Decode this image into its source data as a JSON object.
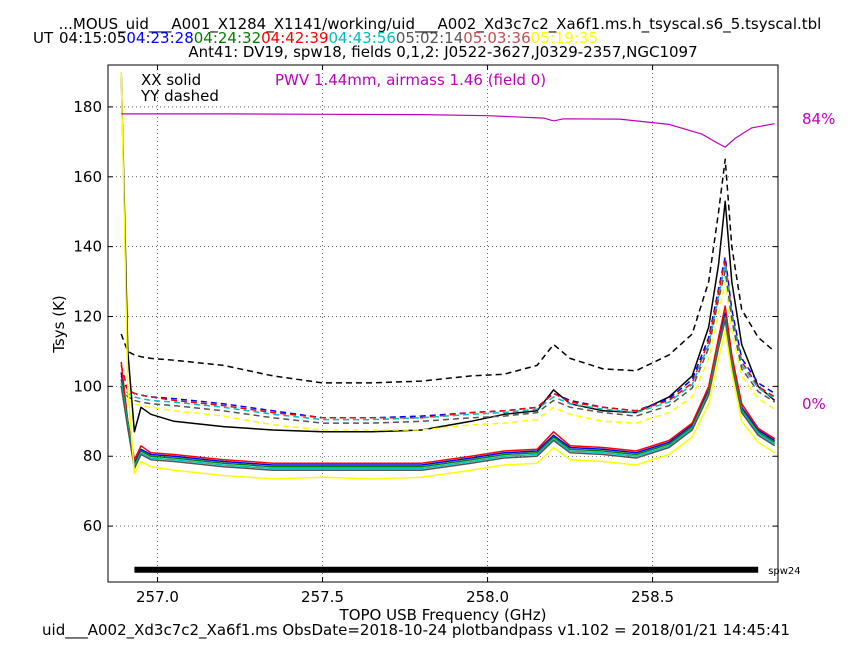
{
  "title_line1": "...MOUS_uid___A001_X1284_X1141/working/uid___A002_Xd3c7c2_Xa6f1.ms.h_tsyscal.s6_5.tsyscal.tbl",
  "ut_label": "UT",
  "ut_times": [
    {
      "text": "04:15:05",
      "color": "#000000"
    },
    {
      "text": "04:23:28",
      "color": "#0000ff"
    },
    {
      "text": "04:24:32",
      "color": "#008000"
    },
    {
      "text": "04:42:39",
      "color": "#ff0000"
    },
    {
      "text": "04:43:56",
      "color": "#00bfbf"
    },
    {
      "text": "05:02:14",
      "color": "#555555"
    },
    {
      "text": "05:03:36",
      "color": "#c44e52"
    },
    {
      "text": "05:19:35",
      "color": "#ffff00"
    }
  ],
  "title_line3": "Ant41: DV19,  spw18,  fields 0,1,2: J0522-3627,J0329-2357,NGC1097",
  "legend_solid": "XX solid",
  "legend_dashed": "YY dashed",
  "pwv_label": "PWV 1.44mm, airmass 1.46 (field 0)",
  "right_top_pct": "84%",
  "right_bottom_pct": "0%",
  "spw_label": "spw24",
  "footer": "uid___A002_Xd3c7c2_Xa6f1.ms  ObsDate=2018-10-24   plotbandpass v1.102 = 2018/01/21 14:45:41",
  "chart_data": {
    "type": "line",
    "xlabel": "TOPO USB Frequency (GHz)",
    "ylabel": "Tsys (K)",
    "xlim": [
      256.85,
      258.88
    ],
    "ylim": [
      44,
      192
    ],
    "xticks": [
      257.0,
      257.5,
      258.0,
      258.5
    ],
    "yticks": [
      60,
      80,
      100,
      120,
      140,
      160,
      180
    ],
    "grid": true,
    "transmission_axis": {
      "label_top": "84%",
      "label_bottom": "0%"
    },
    "transmission_curve": {
      "color": "#bf00bf",
      "x": [
        256.89,
        257.2,
        257.5,
        257.8,
        258.0,
        258.17,
        258.2,
        258.23,
        258.4,
        258.55,
        258.65,
        258.69,
        258.72,
        258.75,
        258.8,
        258.87
      ],
      "y": [
        178,
        178,
        177.9,
        177.8,
        177.5,
        176.8,
        176,
        176.6,
        176.5,
        175,
        172.2,
        170,
        168.5,
        171,
        174,
        175.2
      ]
    },
    "spw_bar": {
      "x_start": 256.93,
      "x_end": 258.82,
      "y": 47.5,
      "label": "spw24"
    },
    "x": [
      256.89,
      256.91,
      256.93,
      256.95,
      256.98,
      257.05,
      257.2,
      257.35,
      257.5,
      257.65,
      257.8,
      257.95,
      258.05,
      258.15,
      258.2,
      258.25,
      258.35,
      258.45,
      258.55,
      258.62,
      258.67,
      258.7,
      258.72,
      258.74,
      258.77,
      258.82,
      258.87
    ],
    "series": [
      {
        "color": "#000000",
        "style": "solid",
        "y": [
          190,
          110,
          87,
          94,
          92,
          90,
          88.5,
          87.5,
          87,
          87,
          87.5,
          90,
          92,
          93,
          99,
          95,
          93,
          92.5,
          97,
          103,
          117,
          135,
          153,
          130,
          112,
          100,
          96
        ]
      },
      {
        "color": "#000000",
        "style": "dashed",
        "y": [
          115,
          110,
          109,
          108.5,
          108,
          107.5,
          106,
          103,
          101,
          101,
          101.5,
          103,
          103.5,
          106,
          112,
          108,
          105,
          104.5,
          109,
          115,
          130,
          150,
          165,
          140,
          122,
          114,
          110
        ]
      },
      {
        "color": "#0000ff",
        "style": "dashed",
        "y": [
          103,
          99,
          98,
          97.5,
          97,
          96.5,
          95,
          93,
          91,
          91,
          91.5,
          92.5,
          93,
          94,
          98,
          96,
          94,
          93,
          96.5,
          102,
          114,
          128,
          137,
          122,
          108,
          101,
          98
        ]
      },
      {
        "color": "#ff0000",
        "style": "dashed",
        "y": [
          106,
          99,
          98,
          97.5,
          97,
          96,
          94.5,
          92.5,
          91,
          91,
          91,
          92.5,
          93,
          94,
          98,
          95.5,
          94,
          93,
          96,
          101,
          113,
          127,
          136,
          121,
          107,
          100,
          97
        ]
      },
      {
        "color": "#00bfbf",
        "style": "dashed",
        "y": [
          101,
          98,
          97,
          96.5,
          96,
          95.5,
          94,
          92,
          90.5,
          90.5,
          91,
          92,
          92.5,
          93.5,
          97,
          95,
          93.5,
          92.5,
          95.5,
          100.5,
          112,
          126,
          135,
          120,
          106,
          99.5,
          96.5
        ]
      },
      {
        "color": "#555555",
        "style": "dashed",
        "y": [
          100,
          97,
          96,
          95.5,
          95,
          94.5,
          93,
          91,
          89.5,
          89.5,
          90,
          91,
          91.5,
          92.5,
          96,
          94,
          92.5,
          91.5,
          94.5,
          99.5,
          111,
          125,
          133,
          119,
          105,
          98.5,
          95.5
        ]
      },
      {
        "color": "#ffff00",
        "style": "dashed",
        "y": [
          99,
          96,
          95,
          94.5,
          94,
          93,
          91.5,
          89,
          87.5,
          87.5,
          87.5,
          89,
          89.5,
          90.5,
          94,
          92,
          90,
          89.5,
          92.5,
          97,
          108,
          121,
          130,
          116,
          103,
          96.5,
          93.5
        ]
      },
      {
        "color": "#0000ff",
        "style": "solid",
        "y": [
          104,
          90,
          78,
          82,
          80.5,
          80,
          78.5,
          77.5,
          77.5,
          77.5,
          77.5,
          79.5,
          81,
          81.5,
          86,
          82.5,
          82,
          81,
          84,
          89,
          99,
          113,
          121,
          108,
          94,
          87.5,
          84.5
        ]
      },
      {
        "color": "#ff0000",
        "style": "solid",
        "y": [
          107,
          90,
          79,
          83,
          81,
          80.5,
          79,
          78,
          78,
          78,
          78,
          80,
          81.5,
          82,
          87,
          83,
          82.5,
          81.5,
          84.5,
          89.5,
          100,
          114,
          123,
          109,
          95,
          88,
          85
        ]
      },
      {
        "color": "#008000",
        "style": "solid",
        "y": [
          102,
          90,
          77.5,
          81.5,
          80,
          79.5,
          78,
          77,
          77,
          77,
          77,
          79,
          80.5,
          81,
          85.5,
          82,
          81.5,
          80.5,
          83.5,
          88.5,
          98.5,
          112,
          120,
          107,
          93.5,
          87,
          84
        ]
      },
      {
        "color": "#00bfbf",
        "style": "solid",
        "y": [
          101,
          89,
          77,
          81,
          79.5,
          79,
          77.5,
          76.5,
          76.5,
          76.5,
          76.5,
          78.5,
          80,
          80.5,
          85,
          81.5,
          81,
          80,
          83,
          88,
          98,
          111.5,
          119.5,
          106.5,
          93,
          86.5,
          83.5
        ]
      },
      {
        "color": "#555555",
        "style": "solid",
        "y": [
          100,
          88,
          76.5,
          80.5,
          79,
          78.5,
          77,
          76,
          76,
          76,
          76,
          78,
          79.5,
          80,
          84.5,
          81,
          80.5,
          79.5,
          82.5,
          87.5,
          97.5,
          111,
          119,
          106,
          92.5,
          86,
          83
        ]
      },
      {
        "color": "#ffff00",
        "style": "solid",
        "y": [
          190,
          100,
          75,
          78.5,
          77,
          76,
          74.5,
          73.5,
          74,
          73.5,
          74,
          76,
          77.5,
          78,
          82.5,
          79,
          78.5,
          77.5,
          80.5,
          85.5,
          95,
          108,
          116,
          104,
          90,
          84,
          81
        ]
      }
    ]
  }
}
